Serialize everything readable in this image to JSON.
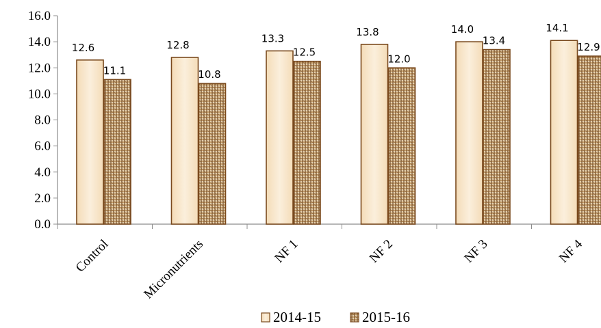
{
  "chart_data": {
    "type": "bar",
    "title": "",
    "xlabel": "",
    "ylabel": "",
    "ylim": [
      0,
      16
    ],
    "yticks": [
      "0.0",
      "2.0",
      "4.0",
      "6.0",
      "8.0",
      "10.0",
      "12.0",
      "14.0",
      "16.0"
    ],
    "categories": [
      "Control",
      "Micronutrients",
      "NF 1",
      "NF 2",
      "NF 3",
      "NF 4"
    ],
    "series": [
      {
        "name": "2014-15",
        "values": [
          12.6,
          12.8,
          13.3,
          13.8,
          14.0,
          14.1
        ],
        "labels": [
          "12.6",
          "12.8",
          "13.3",
          "13.8",
          "14.0",
          "14.1"
        ]
      },
      {
        "name": "2015-16",
        "values": [
          11.1,
          10.8,
          12.5,
          12.0,
          13.4,
          12.9
        ],
        "labels": [
          "11.1",
          "10.8",
          "12.5",
          "12.0",
          "13.4",
          "12.9"
        ]
      }
    ],
    "grid": false,
    "legend_position": "bottom",
    "colors": {
      "series1_fill": "#f8e6cc",
      "series2_fill": "#c9a26e",
      "bar_edge": "#7a4a1e",
      "axis": "#8c8c8c"
    }
  }
}
